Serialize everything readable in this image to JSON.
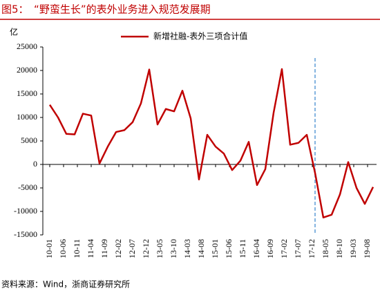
{
  "chart_data": {
    "type": "line",
    "title": "图5：　“野蛮生长”的表外业务进入规范发展期",
    "y_unit": "亿",
    "source": "资料来源：Wind，浙商证券研究所",
    "x_labels": [
      "10-01",
      "10-06",
      "10-11",
      "11-04",
      "11-09",
      "12-02",
      "12-07",
      "12-12",
      "13-05",
      "13-10",
      "14-03",
      "14-08",
      "15-01",
      "15-06",
      "15-11",
      "16-04",
      "16-09",
      "17-02",
      "17-07",
      "17-12",
      "18-05",
      "18-10",
      "19-03",
      "19-08"
    ],
    "series": [
      {
        "name": "新增社融-表外三项合计值",
        "color": "#c00000",
        "values": [
          12700,
          10000,
          6500,
          6400,
          10800,
          10400,
          200,
          3800,
          6900,
          7300,
          9000,
          13000,
          20200,
          8500,
          11800,
          11300,
          15700,
          9800,
          -3200,
          6300,
          3800,
          2300,
          -1200,
          800,
          4800,
          -4400,
          -1000,
          11000,
          20300,
          4200,
          4600,
          6300,
          -1800,
          -11300,
          -10700,
          -6400,
          500,
          -5000,
          -8400,
          -4800
        ]
      }
    ],
    "ylim": [
      -15000,
      25000
    ],
    "yticks": [
      -15000,
      -10000,
      -5000,
      0,
      5000,
      10000,
      15000,
      20000,
      25000
    ],
    "vline_at": "17-12",
    "vline_color": "#5b9bd5",
    "legend": "top"
  }
}
